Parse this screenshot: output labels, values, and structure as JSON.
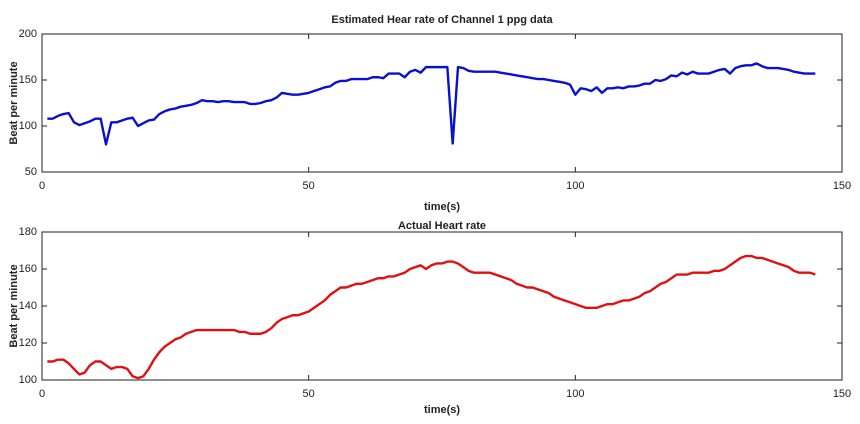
{
  "chart_data": [
    {
      "type": "line",
      "title": "Estimated Hear rate of Channel 1 ppg data",
      "x_label": "time(s)",
      "y_label": "Beat per minute",
      "xlim": [
        0,
        150
      ],
      "xticks": [
        0,
        50,
        100,
        150
      ],
      "ylim": [
        50,
        200
      ],
      "yticks": [
        50,
        100,
        150,
        200
      ],
      "x": [
        1,
        2,
        3,
        4,
        5,
        6,
        7,
        8,
        9,
        10,
        11,
        12,
        13,
        14,
        15,
        16,
        17,
        18,
        19,
        20,
        21,
        22,
        23,
        24,
        25,
        26,
        27,
        28,
        29,
        30,
        31,
        32,
        33,
        34,
        35,
        36,
        37,
        38,
        39,
        40,
        41,
        42,
        43,
        44,
        45,
        46,
        47,
        48,
        49,
        50,
        51,
        52,
        53,
        54,
        55,
        56,
        57,
        58,
        59,
        60,
        61,
        62,
        63,
        64,
        65,
        66,
        67,
        68,
        69,
        70,
        71,
        72,
        73,
        74,
        75,
        76,
        77,
        78,
        79,
        80,
        81,
        82,
        83,
        84,
        85,
        86,
        87,
        88,
        89,
        90,
        91,
        92,
        93,
        94,
        95,
        96,
        97,
        98,
        99,
        100,
        101,
        102,
        103,
        104,
        105,
        106,
        107,
        108,
        109,
        110,
        111,
        112,
        113,
        114,
        115,
        116,
        117,
        118,
        119,
        120,
        121,
        122,
        123,
        124,
        125,
        126,
        127,
        128,
        129,
        130,
        131,
        132,
        133,
        134,
        135,
        136,
        137,
        138,
        139,
        140,
        141,
        142,
        143,
        144,
        145
      ],
      "series": [
        {
          "color": "#0a10d0",
          "values": [
            108,
            108,
            111,
            113,
            114,
            104,
            101,
            103,
            105,
            108,
            108,
            80,
            104,
            104,
            106,
            108,
            109,
            100,
            103,
            106,
            107,
            113,
            116,
            118,
            119,
            121,
            122,
            123,
            125,
            128,
            127,
            127,
            126,
            127,
            127,
            126,
            126,
            126,
            124,
            124,
            125,
            127,
            128,
            131,
            136,
            135,
            134,
            134,
            135,
            136,
            138,
            140,
            142,
            143,
            147,
            149,
            149,
            151,
            151,
            151,
            151,
            153,
            153,
            152,
            157,
            157,
            157,
            153,
            159,
            161,
            158,
            164,
            164,
            164,
            164,
            164,
            81,
            164,
            163,
            160,
            159,
            159,
            159,
            159,
            159,
            158,
            157,
            156,
            155,
            154,
            153,
            152,
            151,
            151,
            150,
            149,
            148,
            147,
            145,
            134,
            141,
            140,
            138,
            142,
            136,
            141,
            141,
            142,
            141,
            143,
            143,
            144,
            146,
            146,
            150,
            149,
            151,
            155,
            154,
            158,
            156,
            159,
            157,
            157,
            157,
            159,
            161,
            162,
            157,
            163,
            165,
            166,
            166,
            168,
            165,
            163,
            163,
            163,
            162,
            161,
            159,
            158,
            157,
            157,
            157
          ]
        }
      ]
    },
    {
      "type": "line",
      "title": "Actual Heart rate",
      "x_label": "time(s)",
      "y_label": "Beat per minute",
      "xlim": [
        0,
        150
      ],
      "xticks": [
        0,
        50,
        100,
        150
      ],
      "ylim": [
        100,
        180
      ],
      "yticks": [
        100,
        120,
        140,
        160,
        180
      ],
      "x": [
        1,
        2,
        3,
        4,
        5,
        6,
        7,
        8,
        9,
        10,
        11,
        12,
        13,
        14,
        15,
        16,
        17,
        18,
        19,
        20,
        21,
        22,
        23,
        24,
        25,
        26,
        27,
        28,
        29,
        30,
        31,
        32,
        33,
        34,
        35,
        36,
        37,
        38,
        39,
        40,
        41,
        42,
        43,
        44,
        45,
        46,
        47,
        48,
        49,
        50,
        51,
        52,
        53,
        54,
        55,
        56,
        57,
        58,
        59,
        60,
        61,
        62,
        63,
        64,
        65,
        66,
        67,
        68,
        69,
        70,
        71,
        72,
        73,
        74,
        75,
        76,
        77,
        78,
        79,
        80,
        81,
        82,
        83,
        84,
        85,
        86,
        87,
        88,
        89,
        90,
        91,
        92,
        93,
        94,
        95,
        96,
        97,
        98,
        99,
        100,
        101,
        102,
        103,
        104,
        105,
        106,
        107,
        108,
        109,
        110,
        111,
        112,
        113,
        114,
        115,
        116,
        117,
        118,
        119,
        120,
        121,
        122,
        123,
        124,
        125,
        126,
        127,
        128,
        129,
        130,
        131,
        132,
        133,
        134,
        135,
        136,
        137,
        138,
        139,
        140,
        141,
        142,
        143,
        144,
        145
      ],
      "series": [
        {
          "color": "#e01010",
          "values": [
            110,
            110,
            111,
            111,
            109,
            106,
            103,
            104,
            108,
            110,
            110,
            108,
            106,
            107,
            107,
            106,
            102,
            101,
            102,
            106,
            111,
            115,
            118,
            120,
            122,
            123,
            125,
            126,
            127,
            127,
            127,
            127,
            127,
            127,
            127,
            127,
            126,
            126,
            125,
            125,
            125,
            126,
            128,
            131,
            133,
            134,
            135,
            135,
            136,
            137,
            139,
            141,
            143,
            146,
            148,
            150,
            150,
            151,
            152,
            152,
            153,
            154,
            155,
            155,
            156,
            156,
            157,
            158,
            160,
            161,
            162,
            160,
            162,
            163,
            163,
            164,
            164,
            163,
            161,
            159,
            158,
            158,
            158,
            158,
            157,
            156,
            155,
            154,
            152,
            151,
            150,
            150,
            149,
            148,
            147,
            145,
            144,
            143,
            142,
            141,
            140,
            139,
            139,
            139,
            140,
            141,
            141,
            142,
            143,
            143,
            144,
            145,
            147,
            148,
            150,
            152,
            153,
            155,
            157,
            157,
            157,
            158,
            158,
            158,
            158,
            159,
            159,
            160,
            162,
            164,
            166,
            167,
            167,
            166,
            166,
            165,
            164,
            163,
            162,
            161,
            159,
            158,
            158,
            158,
            157
          ]
        }
      ]
    }
  ]
}
